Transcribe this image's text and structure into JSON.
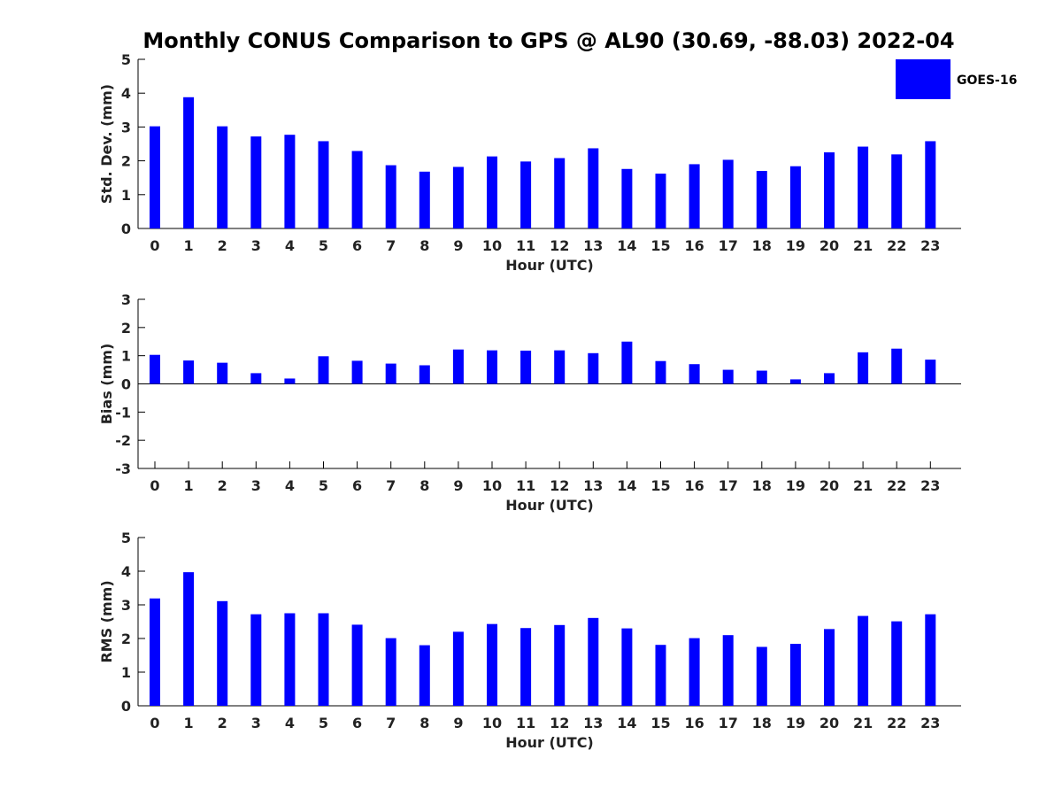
{
  "title": "Monthly CONUS Comparison to GPS @ AL90 (30.69, -88.03) 2022-04",
  "legend": {
    "label": "GOES-16",
    "color": "#0000ff",
    "placement": "top-right"
  },
  "chart_data": [
    {
      "type": "bar",
      "name": "std-dev",
      "xlabel": "Hour (UTC)",
      "ylabel": "Std. Dev. (mm)",
      "ylim": [
        0,
        5
      ],
      "yticks": [
        0,
        1,
        2,
        3,
        4,
        5
      ],
      "categories": [
        "0",
        "1",
        "2",
        "3",
        "4",
        "5",
        "6",
        "7",
        "8",
        "9",
        "10",
        "11",
        "12",
        "13",
        "14",
        "15",
        "16",
        "17",
        "18",
        "19",
        "20",
        "21",
        "22",
        "23"
      ],
      "series": [
        {
          "name": "GOES-16",
          "values": [
            3.02,
            3.88,
            3.02,
            2.72,
            2.77,
            2.58,
            2.29,
            1.87,
            1.68,
            1.82,
            2.13,
            1.98,
            2.08,
            2.37,
            1.76,
            1.62,
            1.9,
            2.03,
            1.7,
            1.84,
            2.25,
            2.42,
            2.19,
            2.58
          ]
        }
      ],
      "grid": false
    },
    {
      "type": "bar",
      "name": "bias",
      "xlabel": "Hour (UTC)",
      "ylabel": "Bias (mm)",
      "ylim": [
        -3,
        3
      ],
      "yticks": [
        -3,
        -2,
        -1,
        0,
        1,
        2,
        3
      ],
      "categories": [
        "0",
        "1",
        "2",
        "3",
        "4",
        "5",
        "6",
        "7",
        "8",
        "9",
        "10",
        "11",
        "12",
        "13",
        "14",
        "15",
        "16",
        "17",
        "18",
        "19",
        "20",
        "21",
        "22",
        "23"
      ],
      "series": [
        {
          "name": "GOES-16",
          "values": [
            1.03,
            0.83,
            0.75,
            0.38,
            0.19,
            0.98,
            0.82,
            0.72,
            0.66,
            1.22,
            1.19,
            1.18,
            1.19,
            1.09,
            1.5,
            0.81,
            0.7,
            0.5,
            0.47,
            0.16,
            0.38,
            1.12,
            1.25,
            0.86
          ]
        }
      ],
      "grid": false
    },
    {
      "type": "bar",
      "name": "rms",
      "xlabel": "Hour (UTC)",
      "ylabel": "RMS (mm)",
      "ylim": [
        0,
        5
      ],
      "yticks": [
        0,
        1,
        2,
        3,
        4,
        5
      ],
      "categories": [
        "0",
        "1",
        "2",
        "3",
        "4",
        "5",
        "6",
        "7",
        "8",
        "9",
        "10",
        "11",
        "12",
        "13",
        "14",
        "15",
        "16",
        "17",
        "18",
        "19",
        "20",
        "21",
        "22",
        "23"
      ],
      "series": [
        {
          "name": "GOES-16",
          "values": [
            3.19,
            3.97,
            3.11,
            2.72,
            2.75,
            2.75,
            2.41,
            2.01,
            1.8,
            2.2,
            2.43,
            2.31,
            2.4,
            2.61,
            2.3,
            1.81,
            2.01,
            2.1,
            1.75,
            1.84,
            2.28,
            2.67,
            2.51,
            2.72
          ]
        }
      ],
      "grid": false
    }
  ]
}
